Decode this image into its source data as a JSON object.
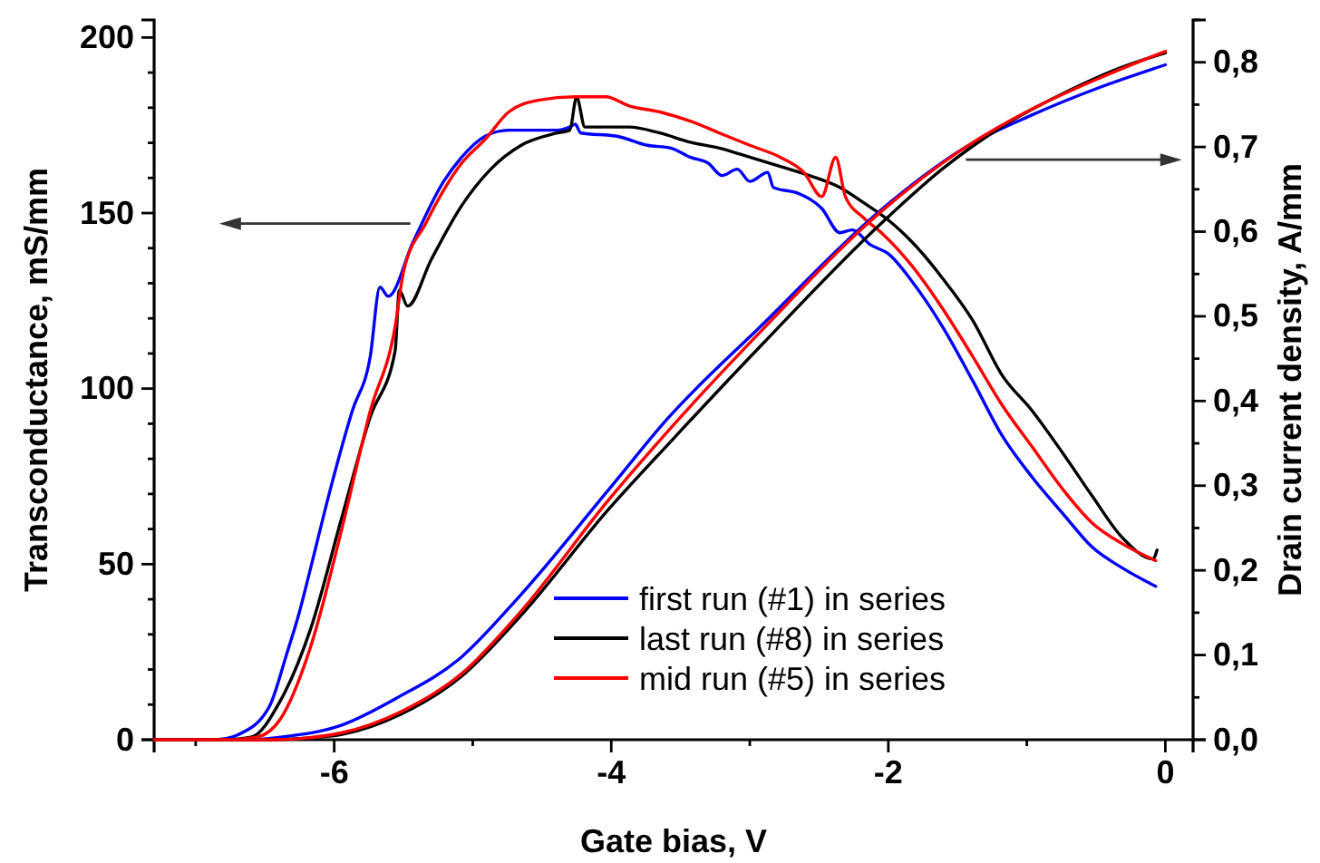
{
  "chart_data": {
    "type": "line",
    "xlabel": "Gate bias, V",
    "ylabel": "Transconductance, mS/mm",
    "y2label": "Drain current density, A/mm",
    "xlim": [
      -7.3,
      0.2
    ],
    "ylim": [
      0,
      205
    ],
    "y2lim": [
      0,
      0.85
    ],
    "xticks": [
      {
        "value": -7,
        "label": null
      },
      -6,
      {
        "value": -5,
        "label": null
      },
      -4,
      {
        "value": -3,
        "label": null
      },
      -2,
      {
        "value": -1,
        "label": null
      },
      0
    ],
    "yticks": [
      0,
      {
        "value": 10,
        "label": null
      },
      {
        "value": 20,
        "label": null
      },
      {
        "value": 30,
        "label": null
      },
      {
        "value": 40,
        "label": null
      },
      50,
      {
        "value": 60,
        "label": null
      },
      {
        "value": 70,
        "label": null
      },
      {
        "value": 80,
        "label": null
      },
      {
        "value": 90,
        "label": null
      },
      100,
      {
        "value": 110,
        "label": null
      },
      {
        "value": 120,
        "label": null
      },
      {
        "value": 130,
        "label": null
      },
      {
        "value": 140,
        "label": null
      },
      150,
      {
        "value": 160,
        "label": null
      },
      {
        "value": 170,
        "label": null
      },
      {
        "value": 180,
        "label": null
      },
      {
        "value": 190,
        "label": null
      },
      200
    ],
    "y2ticks": [
      {
        "value": 0,
        "label": "0,0"
      },
      {
        "value": 0.05,
        "label": null
      },
      {
        "value": 0.1,
        "label": "0,1"
      },
      {
        "value": 0.15,
        "label": null
      },
      {
        "value": 0.2,
        "label": "0,2"
      },
      {
        "value": 0.25,
        "label": null
      },
      {
        "value": 0.3,
        "label": "0,3"
      },
      {
        "value": 0.35,
        "label": null
      },
      {
        "value": 0.4,
        "label": "0,4"
      },
      {
        "value": 0.45,
        "label": null
      },
      {
        "value": 0.5,
        "label": "0,5"
      },
      {
        "value": 0.55,
        "label": null
      },
      {
        "value": 0.6,
        "label": "0,6"
      },
      {
        "value": 0.65,
        "label": null
      },
      {
        "value": 0.7,
        "label": "0,7"
      },
      {
        "value": 0.75,
        "label": null
      },
      {
        "value": 0.8,
        "label": "0,8"
      },
      {
        "value": 0.85,
        "label": null
      }
    ],
    "legend": "bottom",
    "line_style": "solid",
    "marker": "none",
    "series": [
      {
        "name": "first run (#1) in series",
        "color": "#0000ff",
        "x": [
          -7.3,
          -6.85,
          -6.69,
          -6.47,
          -6.34,
          -6.26,
          -6.17,
          -6.04,
          -5.87,
          -5.74,
          -5.67,
          -5.61,
          -5.43,
          -5.21,
          -5.08,
          -4.91,
          -4.74,
          -4.39,
          -4.3,
          -4.26,
          -4.22,
          -3.96,
          -3.74,
          -3.57,
          -3.43,
          -3.3,
          -3.2,
          -3.09,
          -3.0,
          -2.87,
          -2.83,
          -2.65,
          -2.48,
          -2.35,
          -2.26,
          -2.13,
          -2.0,
          -1.83,
          -1.61,
          -1.39,
          -1.18,
          -0.96,
          -0.74,
          -0.53,
          -0.31,
          -0.07
        ],
        "values": [
          0,
          0,
          1.5,
          9.3,
          24.8,
          35.1,
          48.9,
          69.5,
          93.6,
          109.1,
          128.9,
          126.3,
          141.8,
          159,
          165.9,
          171.9,
          173.6,
          173.6,
          174.5,
          175.3,
          172.8,
          171.9,
          169.3,
          168.5,
          165.9,
          164.2,
          160.7,
          162.5,
          159,
          161.6,
          157.3,
          155.6,
          151.3,
          144.4,
          145.2,
          141,
          138.4,
          130.6,
          117.7,
          102.2,
          86.7,
          74.7,
          64.4,
          54.9,
          48.9,
          43.7
        ]
      },
      {
        "name": "last run (#8) in series",
        "color": "#000000",
        "x": [
          -7.3,
          -6.8,
          -6.6,
          -6.39,
          -6.17,
          -5.95,
          -5.74,
          -5.56,
          -5.53,
          -5.47,
          -5.3,
          -5.08,
          -4.87,
          -4.65,
          -4.39,
          -4.3,
          -4.25,
          -4.19,
          -3.87,
          -3.65,
          -3.43,
          -3.22,
          -3.0,
          -2.78,
          -2.57,
          -2.35,
          -2.18,
          -2.0,
          -1.83,
          -1.61,
          -1.39,
          -1.18,
          -0.96,
          -0.74,
          -0.53,
          -0.31,
          -0.09,
          -0.06
        ],
        "values": [
          0,
          0,
          0.7,
          11,
          31.6,
          62.6,
          91.9,
          110.8,
          128,
          123.5,
          136.7,
          152.1,
          162.5,
          169.3,
          172.8,
          173.6,
          183,
          174.5,
          174.5,
          172.8,
          170.2,
          168.5,
          165.9,
          163.3,
          160.7,
          157.3,
          153,
          148,
          141.8,
          131.5,
          119.4,
          103.9,
          93.6,
          81.6,
          69.5,
          57.5,
          51.5,
          54
        ]
      },
      {
        "name": "mid run (#5) in series",
        "color": "#ff0000",
        "x": [
          -7.3,
          -6.75,
          -6.56,
          -6.39,
          -6.17,
          -5.95,
          -5.74,
          -5.56,
          -5.5,
          -5.34,
          -5.08,
          -4.91,
          -4.74,
          -4.52,
          -4.26,
          -4.04,
          -3.87,
          -3.65,
          -3.43,
          -3.22,
          -3.0,
          -2.78,
          -2.61,
          -2.48,
          -2.38,
          -2.31,
          -2.18,
          -2.05,
          -1.83,
          -1.61,
          -1.39,
          -1.18,
          -0.96,
          -0.74,
          -0.53,
          -0.31,
          -0.07
        ],
        "values": [
          0,
          0,
          0.7,
          5.8,
          26.5,
          59.2,
          93.6,
          117.7,
          133.2,
          147,
          164.2,
          171,
          178.8,
          182.2,
          183.1,
          183.1,
          180.5,
          178.8,
          176.2,
          172.8,
          169.3,
          165.9,
          161.6,
          154.7,
          165.9,
          154.7,
          148.7,
          144.4,
          135,
          122.9,
          109.1,
          95.4,
          83.3,
          71.3,
          61.8,
          55.8,
          51
        ]
      },
      {
        "color": "#0000ff",
        "axis": "y2",
        "x": [
          -7.3,
          -6.6,
          -6.39,
          -5.95,
          -5.54,
          -5.1,
          -4.67,
          -4.02,
          -3.6,
          -2.91,
          -2.05,
          -1.44,
          -0.96,
          -0.48,
          0
        ],
        "values": [
          0,
          0,
          0.003,
          0.017,
          0.05,
          0.095,
          0.168,
          0.295,
          0.378,
          0.49,
          0.626,
          0.7,
          0.738,
          0.77,
          0.797
        ]
      },
      {
        "color": "#000000",
        "axis": "y2",
        "x": [
          -7.3,
          -6.5,
          -6.2,
          -5.95,
          -5.52,
          -5.08,
          -4.65,
          -4.02,
          -3.56,
          -2.91,
          -2.05,
          -1.61,
          -1.18,
          -0.74,
          -0.3,
          0
        ],
        "values": [
          0,
          0,
          0.002,
          0.006,
          0.03,
          0.075,
          0.147,
          0.272,
          0.354,
          0.467,
          0.61,
          0.674,
          0.724,
          0.763,
          0.795,
          0.811
        ]
      },
      {
        "color": "#ff0000",
        "axis": "y2",
        "x": [
          -7.3,
          -6.45,
          -6.2,
          -5.95,
          -5.52,
          -5.08,
          -4.65,
          -4.02,
          -3.56,
          -2.91,
          -2.05,
          -1.44,
          -0.96,
          -0.48,
          0
        ],
        "values": [
          0,
          0,
          0.002,
          0.008,
          0.033,
          0.078,
          0.152,
          0.283,
          0.37,
          0.484,
          0.624,
          0.7,
          0.745,
          0.781,
          0.813
        ]
      }
    ]
  }
}
